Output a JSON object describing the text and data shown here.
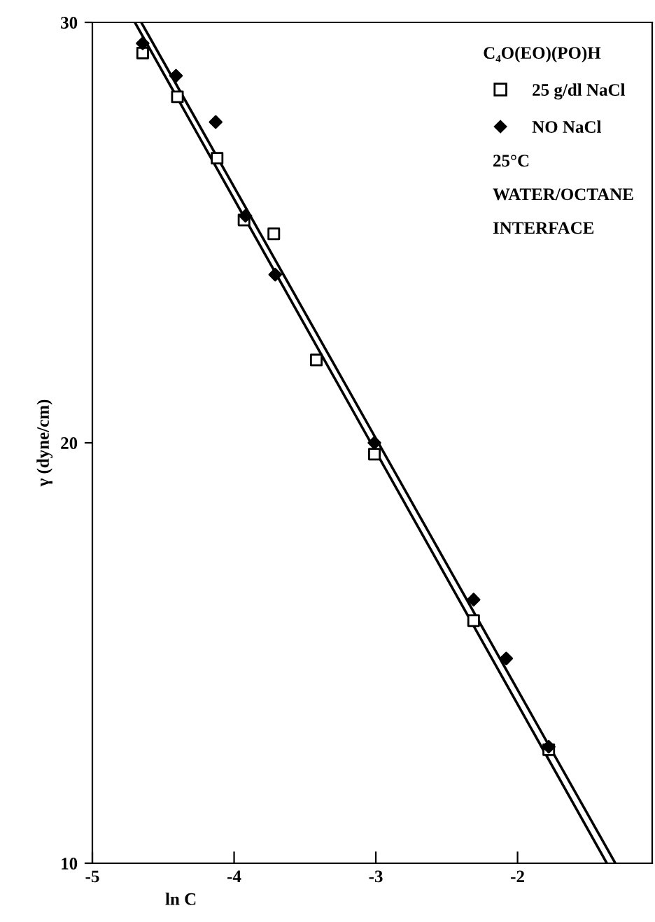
{
  "chart_data": {
    "type": "scatter",
    "xlabel": "ln C",
    "ylabel": "γ (dyne/cm)",
    "legend_title": "C₄O(EO)(PO)H",
    "xlim": [
      -5,
      -1.05
    ],
    "xticks": [
      -5,
      -4,
      -3,
      -2
    ],
    "ylim": [
      10,
      30
    ],
    "yticks": [
      10,
      20,
      30
    ],
    "grid": false,
    "legend": "top right",
    "series": [
      {
        "name": "25 g/dl NaCl",
        "color": "#000000",
        "marker": "square",
        "x": [
          -4.645,
          -4.4,
          -4.12,
          -3.93,
          -3.72,
          -3.42,
          -3.01,
          -2.31,
          -1.78
        ],
        "values": [
          29.27,
          28.23,
          26.77,
          25.3,
          24.97,
          21.97,
          19.73,
          15.77,
          12.7
        ]
      },
      {
        "name": "NO NaCl",
        "color": "#000000",
        "marker": "diamond",
        "x": [
          -4.645,
          -4.41,
          -4.13,
          -3.92,
          -3.71,
          -3.01,
          -2.31,
          -2.08,
          -1.78
        ],
        "values": [
          29.5,
          28.73,
          27.63,
          25.4,
          24.0,
          20.0,
          16.27,
          14.87,
          12.77
        ]
      },
      {
        "type": "line",
        "color": "#000000",
        "marker": "none",
        "x": [
          -4.7,
          -1.37
        ],
        "values": [
          30,
          10
        ]
      },
      {
        "type": "line",
        "color": "#000000",
        "marker": "none",
        "x": [
          -4.655,
          -1.31
        ],
        "values": [
          30,
          10
        ]
      }
    ],
    "annotations": [
      "25°C",
      "WATER/OCTANE",
      "INTERFACE"
    ]
  }
}
